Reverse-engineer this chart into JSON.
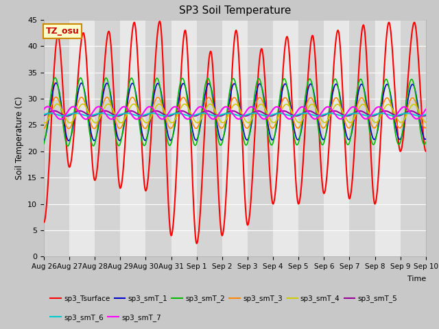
{
  "title": "SP3 Soil Temperature",
  "ylabel": "Soil Temperature (C)",
  "ylim": [
    0,
    45
  ],
  "annotation_text": "TZ_osu",
  "annotation_color": "#cc0000",
  "annotation_bg": "#ffffcc",
  "annotation_border": "#cc8800",
  "fig_bg": "#c8c8c8",
  "plot_bg": "#e8e8e8",
  "alt_band_color": "#d4d4d4",
  "series_colors": {
    "sp3_Tsurface": "#ff0000",
    "sp3_smT_1": "#0000cc",
    "sp3_smT_2": "#00bb00",
    "sp3_smT_3": "#ff8800",
    "sp3_smT_4": "#cccc00",
    "sp3_smT_5": "#990099",
    "sp3_smT_6": "#00cccc",
    "sp3_smT_7": "#ff00ff"
  },
  "legend_order": [
    "sp3_Tsurface",
    "sp3_smT_1",
    "sp3_smT_2",
    "sp3_smT_3",
    "sp3_smT_4",
    "sp3_smT_5",
    "sp3_smT_6",
    "sp3_smT_7"
  ],
  "x_tick_labels": [
    "Aug 26",
    "Aug 27",
    "Aug 28",
    "Aug 29",
    "Aug 30",
    "Aug 31",
    "Sep 1",
    "Sep 2",
    "Sep 3",
    "Sep 4",
    "Sep 5",
    "Sep 6",
    "Sep 7",
    "Sep 8",
    "Sep 9",
    "Sep 10"
  ],
  "x_tick_positions": [
    0,
    1,
    2,
    3,
    4,
    5,
    6,
    7,
    8,
    9,
    10,
    11,
    12,
    13,
    14,
    15
  ],
  "n_days": 15,
  "pts_per_day": 288
}
